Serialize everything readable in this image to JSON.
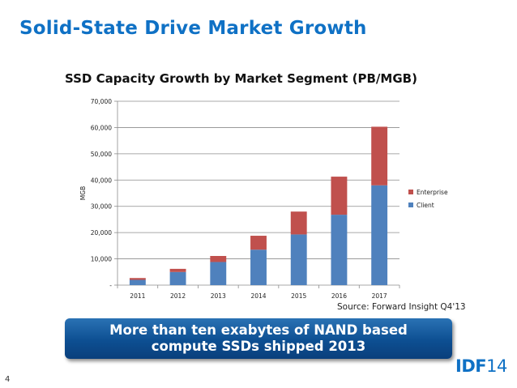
{
  "slide": {
    "title": "Solid-State Drive Market Growth",
    "source": "Source: Forward Insight Q4'13",
    "callout_line1": "More than ten exabytes of NAND based",
    "callout_line2": "compute SSDs shipped 2013",
    "page_number": "4",
    "logo_bold": "IDF",
    "logo_light": "14"
  },
  "colors": {
    "title": "#0f71c5",
    "client": "#4f81bd",
    "enterprise": "#c0504d",
    "callout": "#0d4f92"
  },
  "chart_data": {
    "type": "bar",
    "stacked": true,
    "title": "SSD Capacity Growth by Market Segment (PB/MGB)",
    "xlabel": "",
    "ylabel": "MGB",
    "categories": [
      "2011",
      "2012",
      "2013",
      "2014",
      "2015",
      "2016",
      "2017"
    ],
    "ylim": [
      0,
      70000
    ],
    "yticks": [
      0,
      10000,
      20000,
      30000,
      40000,
      50000,
      60000,
      70000
    ],
    "ytick_labels": [
      "-",
      "10,000",
      "20,000",
      "30,000",
      "40,000",
      "50,000",
      "60,000",
      "70,000"
    ],
    "grid": true,
    "legend_position": "right",
    "series": [
      {
        "name": "Client",
        "color": "#4f81bd",
        "values": [
          2000,
          5000,
          8800,
          13500,
          19300,
          26800,
          38000
        ]
      },
      {
        "name": "Enterprise",
        "color": "#c0504d",
        "values": [
          700,
          1200,
          2300,
          5300,
          8700,
          14500,
          22300
        ]
      }
    ],
    "legend_order": [
      "Enterprise",
      "Client"
    ]
  }
}
